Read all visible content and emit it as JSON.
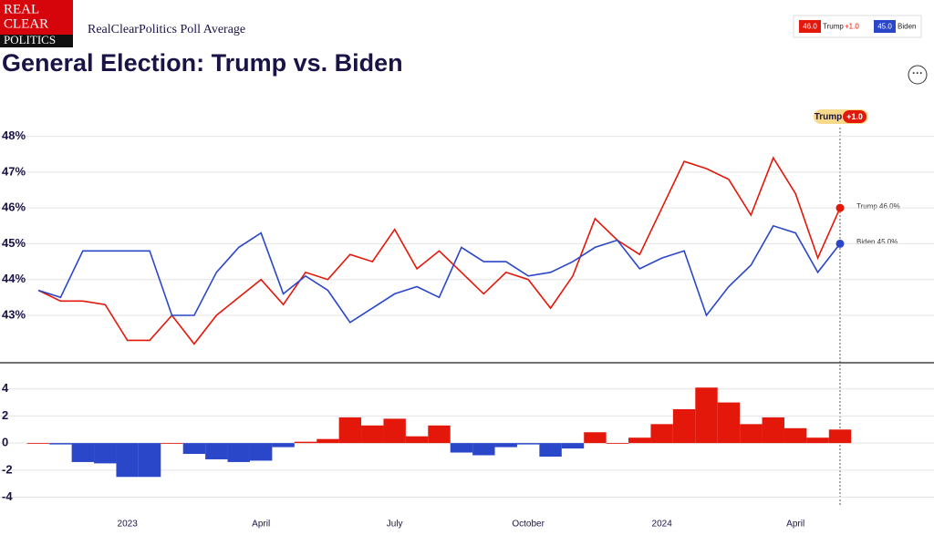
{
  "header": {
    "logo": [
      "REAL",
      "CLEAR",
      "POLITICS"
    ],
    "subtitle": "RealClearPolitics Poll Average",
    "legend": [
      {
        "value": "46.0",
        "name": "Trump",
        "change": "+1.0"
      },
      {
        "value": "45.0",
        "name": "Biden"
      }
    ],
    "badge": {
      "name": "Trump",
      "change": "+1.0"
    },
    "end_labels": [
      "Trump 46.0%",
      "Biden 45.0%"
    ]
  },
  "chart_data": [
    {
      "type": "line",
      "title": "General Election: Trump vs. Biden",
      "categories": [
        null,
        null,
        null,
        null,
        "2023",
        null,
        null,
        null,
        null,
        null,
        "April",
        null,
        null,
        null,
        null,
        null,
        "July",
        null,
        null,
        null,
        null,
        null,
        "October",
        null,
        null,
        null,
        null,
        null,
        "2024",
        null,
        null,
        null,
        null,
        null,
        "April",
        null,
        null
      ],
      "series": [
        {
          "name": "Trump",
          "color": "#e3170a",
          "values": [
            43.7,
            43.4,
            43.4,
            43.3,
            42.3,
            42.3,
            43.0,
            42.2,
            43.0,
            43.5,
            44.0,
            43.3,
            44.2,
            44.0,
            44.7,
            44.5,
            45.4,
            44.3,
            44.8,
            44.2,
            43.6,
            44.2,
            44.0,
            43.2,
            44.1,
            45.7,
            45.1,
            44.7,
            46.0,
            47.3,
            47.1,
            46.8,
            45.8,
            47.4,
            46.4,
            44.6,
            46.0
          ]
        },
        {
          "name": "Biden",
          "color": "#2a46c9",
          "values": [
            43.7,
            43.5,
            44.8,
            44.8,
            44.8,
            44.8,
            43.0,
            43.0,
            44.2,
            44.9,
            45.3,
            43.6,
            44.1,
            43.7,
            42.8,
            43.2,
            43.6,
            43.8,
            43.5,
            44.9,
            44.5,
            44.5,
            44.1,
            44.2,
            44.5,
            44.9,
            45.1,
            44.3,
            44.6,
            44.8,
            43.0,
            43.8,
            44.4,
            45.5,
            45.3,
            44.2,
            45.0
          ]
        }
      ],
      "ylim": [
        41.7,
        48.5
      ],
      "yticks": [
        {
          "value": 43,
          "label": "43%"
        },
        {
          "value": 44,
          "label": "44%"
        },
        {
          "value": 45,
          "label": "45%"
        },
        {
          "value": 46,
          "label": "46%"
        },
        {
          "value": 47,
          "label": "47%"
        },
        {
          "value": 48,
          "label": "48%"
        }
      ],
      "grid": true
    },
    {
      "type": "bar",
      "values": [
        0,
        -0.1,
        -1.4,
        -1.5,
        -2.5,
        -2.5,
        0,
        -0.8,
        -1.2,
        -1.4,
        -1.3,
        -0.3,
        0.1,
        0.3,
        1.9,
        1.3,
        1.8,
        0.5,
        1.3,
        -0.7,
        -0.9,
        -0.3,
        -0.1,
        -1.0,
        -0.4,
        0.8,
        0,
        0.4,
        1.4,
        2.5,
        4.1,
        3.0,
        1.4,
        1.9,
        1.1,
        0.4,
        1.0
      ],
      "colors": {
        "positive": "#e3170a",
        "negative": "#2a46c9"
      },
      "ylim": [
        -4.3,
        5.8
      ],
      "yticks": [
        4,
        2,
        0,
        -2,
        -4
      ],
      "grid": true
    }
  ]
}
